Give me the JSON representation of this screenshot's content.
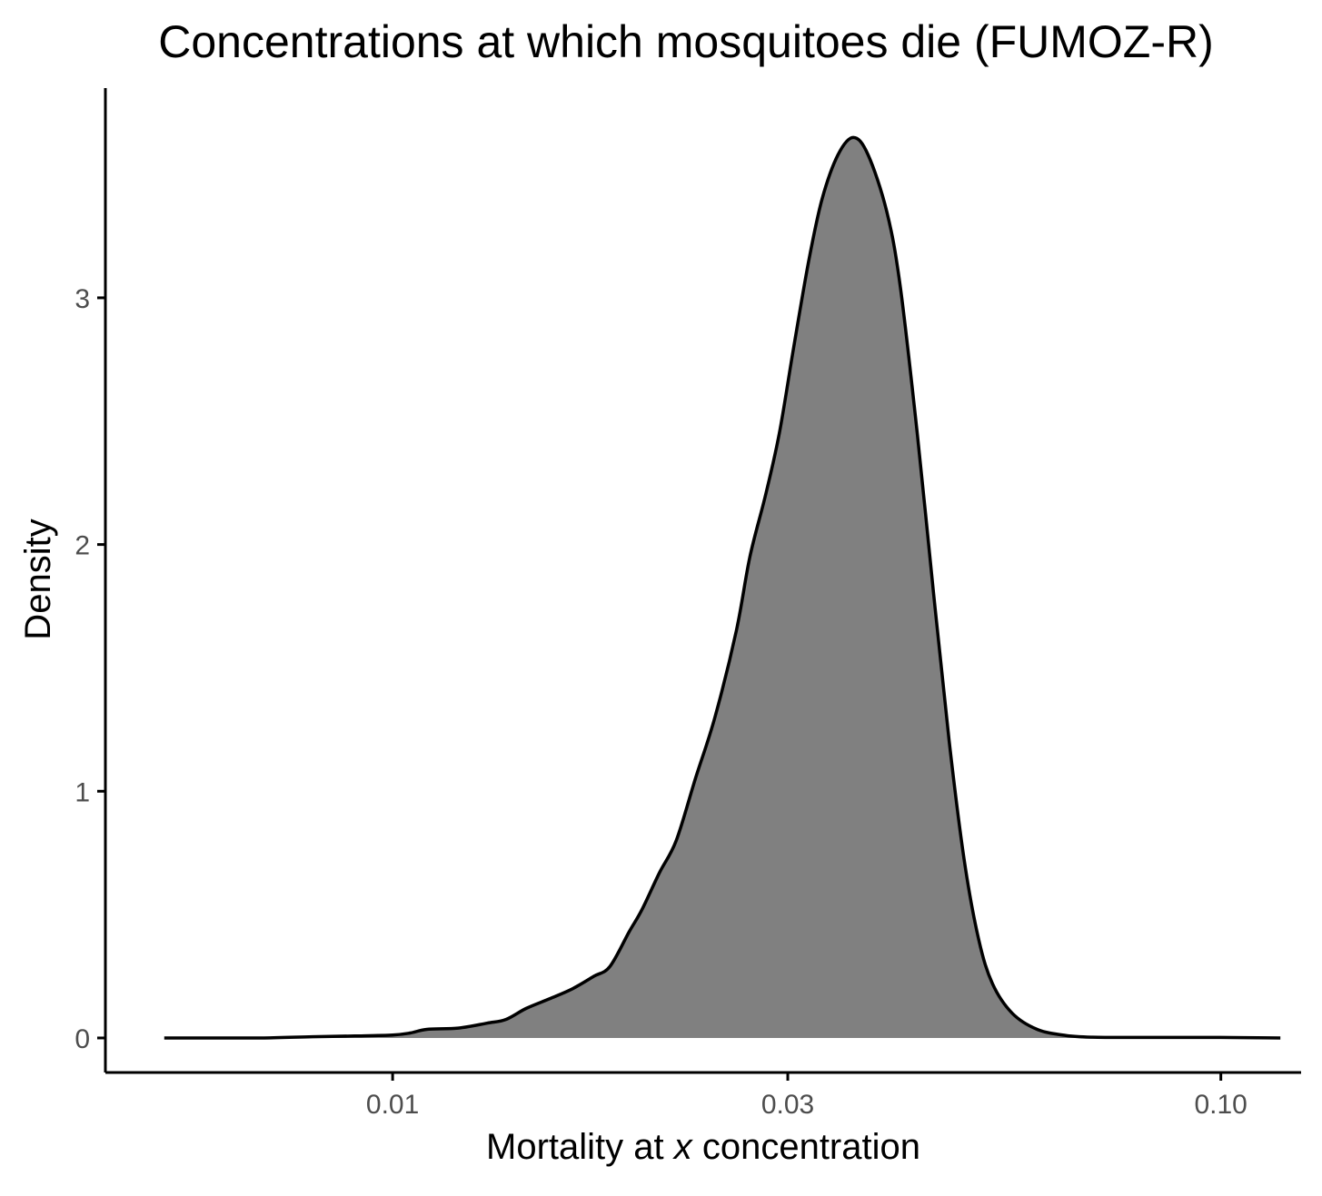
{
  "chart_data": {
    "type": "area",
    "title": "Concentrations at which mosquitoes die (FUMOZ-R)",
    "xlabel_prefix": "Mortality at ",
    "xlabel_var": "x",
    "xlabel_suffix": " concentration",
    "ylabel": "Density",
    "x_scale": "log10",
    "xlim": [
      0.0045,
      0.125
    ],
    "ylim": [
      -0.14,
      3.85
    ],
    "x_ticks": [
      {
        "value": 0.01,
        "label": "0.01"
      },
      {
        "value": 0.03,
        "label": "0.03"
      },
      {
        "value": 0.1,
        "label": "0.10"
      }
    ],
    "y_ticks": [
      {
        "value": 0,
        "label": "0"
      },
      {
        "value": 1,
        "label": "1"
      },
      {
        "value": 2,
        "label": "2"
      },
      {
        "value": 3,
        "label": "3"
      }
    ],
    "grid": false,
    "fill_color": "#808080",
    "line_color": "#000000",
    "series": [
      {
        "points": [
          [
            0.0053,
            0.0
          ],
          [
            0.006,
            0.0
          ],
          [
            0.007,
            0.0
          ],
          [
            0.008,
            0.005
          ],
          [
            0.009,
            0.008
          ],
          [
            0.01,
            0.012
          ],
          [
            0.0105,
            0.02
          ],
          [
            0.011,
            0.035
          ],
          [
            0.012,
            0.04
          ],
          [
            0.013,
            0.06
          ],
          [
            0.0137,
            0.075
          ],
          [
            0.0145,
            0.12
          ],
          [
            0.0155,
            0.16
          ],
          [
            0.0165,
            0.2
          ],
          [
            0.0175,
            0.25
          ],
          [
            0.0183,
            0.29
          ],
          [
            0.0193,
            0.43
          ],
          [
            0.02,
            0.52
          ],
          [
            0.021,
            0.67
          ],
          [
            0.022,
            0.8
          ],
          [
            0.0232,
            1.05
          ],
          [
            0.0245,
            1.3
          ],
          [
            0.026,
            1.65
          ],
          [
            0.027,
            1.95
          ],
          [
            0.0282,
            2.2
          ],
          [
            0.0293,
            2.45
          ],
          [
            0.0305,
            2.8
          ],
          [
            0.0318,
            3.15
          ],
          [
            0.033,
            3.4
          ],
          [
            0.0345,
            3.58
          ],
          [
            0.036,
            3.65
          ],
          [
            0.0375,
            3.58
          ],
          [
            0.0395,
            3.35
          ],
          [
            0.041,
            3.05
          ],
          [
            0.043,
            2.45
          ],
          [
            0.045,
            1.8
          ],
          [
            0.047,
            1.2
          ],
          [
            0.049,
            0.72
          ],
          [
            0.051,
            0.4
          ],
          [
            0.053,
            0.22
          ],
          [
            0.056,
            0.1
          ],
          [
            0.06,
            0.035
          ],
          [
            0.065,
            0.01
          ],
          [
            0.07,
            0.003
          ],
          [
            0.08,
            0.002
          ],
          [
            0.1,
            0.002
          ],
          [
            0.118,
            0.0
          ]
        ]
      }
    ]
  }
}
